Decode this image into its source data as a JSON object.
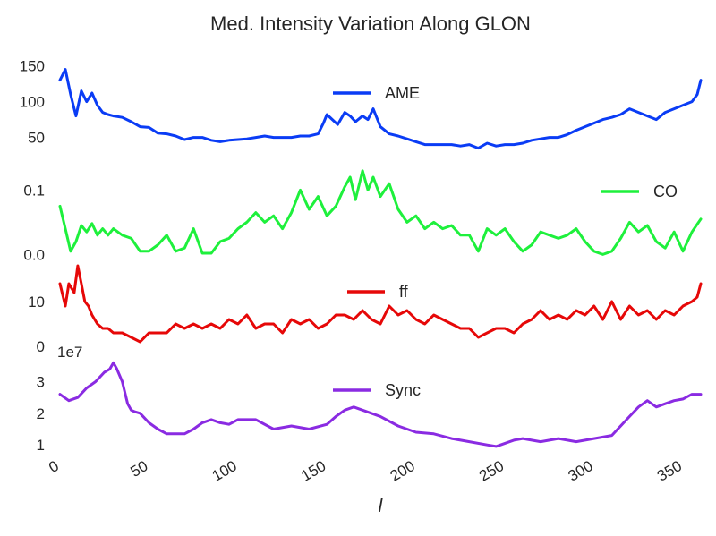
{
  "chart_data": {
    "type": "line",
    "title": "Med. Intensity Variation Along GLON",
    "xlabel": "l",
    "xlim": [
      0,
      360
    ],
    "xticks": [
      0,
      50,
      100,
      150,
      200,
      250,
      300,
      350
    ],
    "grid": false,
    "panels": [
      {
        "name": "AME",
        "color": "#0a3cf5",
        "legend_position": "top-center",
        "ylim": [
          32,
          152
        ],
        "yticks": [
          50,
          100,
          150
        ],
        "x": [
          0,
          3,
          6,
          9,
          12,
          15,
          18,
          21,
          24,
          27,
          30,
          35,
          40,
          45,
          50,
          55,
          60,
          65,
          70,
          75,
          80,
          85,
          90,
          95,
          100,
          105,
          110,
          115,
          120,
          125,
          130,
          135,
          140,
          145,
          148,
          150,
          153,
          156,
          160,
          163,
          166,
          170,
          173,
          176,
          180,
          185,
          190,
          195,
          200,
          205,
          210,
          215,
          220,
          225,
          230,
          235,
          240,
          245,
          250,
          255,
          260,
          265,
          270,
          275,
          280,
          285,
          290,
          295,
          300,
          305,
          310,
          315,
          320,
          325,
          330,
          335,
          340,
          345,
          350,
          355,
          358,
          360
        ],
        "values": [
          130,
          145,
          110,
          80,
          115,
          100,
          112,
          95,
          85,
          82,
          80,
          78,
          72,
          65,
          64,
          56,
          55,
          52,
          47,
          50,
          50,
          46,
          44,
          46,
          47,
          48,
          50,
          52,
          50,
          50,
          50,
          52,
          52,
          55,
          70,
          82,
          75,
          68,
          85,
          80,
          72,
          80,
          75,
          90,
          65,
          55,
          52,
          48,
          44,
          40,
          40,
          40,
          40,
          38,
          40,
          35,
          42,
          38,
          40,
          40,
          42,
          46,
          48,
          50,
          50,
          54,
          60,
          65,
          70,
          75,
          78,
          82,
          90,
          85,
          80,
          75,
          85,
          90,
          95,
          100,
          110,
          130
        ]
      },
      {
        "name": "CO",
        "color": "#1ef03c",
        "legend_position": "center-right",
        "ylim": [
          -0.005,
          0.145
        ],
        "yticks": [
          0.0,
          0.1
        ],
        "ytick_labels": [
          "0.0",
          "0.1"
        ],
        "x": [
          0,
          3,
          6,
          9,
          12,
          15,
          18,
          21,
          24,
          27,
          30,
          35,
          40,
          45,
          50,
          55,
          60,
          65,
          70,
          75,
          80,
          85,
          90,
          95,
          100,
          105,
          110,
          115,
          120,
          125,
          130,
          135,
          140,
          145,
          150,
          155,
          160,
          163,
          166,
          170,
          173,
          176,
          180,
          185,
          190,
          195,
          200,
          205,
          210,
          215,
          220,
          225,
          230,
          235,
          240,
          245,
          250,
          255,
          260,
          265,
          270,
          275,
          280,
          285,
          290,
          295,
          300,
          305,
          310,
          315,
          320,
          325,
          330,
          335,
          340,
          345,
          350,
          355,
          360
        ],
        "values": [
          0.075,
          0.04,
          0.005,
          0.02,
          0.045,
          0.035,
          0.048,
          0.03,
          0.04,
          0.03,
          0.04,
          0.03,
          0.025,
          0.005,
          0.005,
          0.015,
          0.03,
          0.005,
          0.01,
          0.04,
          0.002,
          0.002,
          0.02,
          0.025,
          0.04,
          0.05,
          0.065,
          0.05,
          0.06,
          0.04,
          0.065,
          0.1,
          0.07,
          0.09,
          0.06,
          0.075,
          0.105,
          0.12,
          0.085,
          0.13,
          0.1,
          0.12,
          0.09,
          0.11,
          0.07,
          0.05,
          0.06,
          0.04,
          0.05,
          0.04,
          0.045,
          0.03,
          0.03,
          0.005,
          0.04,
          0.03,
          0.04,
          0.02,
          0.005,
          0.015,
          0.035,
          0.03,
          0.025,
          0.03,
          0.04,
          0.02,
          0.005,
          0.0,
          0.005,
          0.025,
          0.05,
          0.035,
          0.045,
          0.02,
          0.01,
          0.035,
          0.005,
          0.035,
          0.055
        ]
      },
      {
        "name": "ff",
        "color": "#e60808",
        "legend_position": "top-center",
        "ylim": [
          -1,
          19
        ],
        "yticks": [
          0,
          10
        ],
        "x": [
          0,
          3,
          5,
          8,
          10,
          12,
          14,
          16,
          18,
          21,
          24,
          27,
          30,
          35,
          40,
          45,
          50,
          55,
          60,
          65,
          70,
          75,
          80,
          85,
          90,
          95,
          100,
          105,
          110,
          115,
          120,
          125,
          130,
          135,
          140,
          145,
          150,
          155,
          160,
          165,
          170,
          175,
          180,
          185,
          190,
          195,
          200,
          205,
          210,
          215,
          220,
          225,
          230,
          235,
          240,
          245,
          250,
          255,
          260,
          265,
          270,
          275,
          280,
          285,
          290,
          295,
          300,
          305,
          310,
          315,
          320,
          325,
          330,
          335,
          340,
          345,
          350,
          355,
          358,
          360
        ],
        "values": [
          14,
          9,
          14,
          12,
          18,
          14,
          10,
          9,
          7,
          5,
          4,
          4,
          3,
          3,
          2,
          1,
          3,
          3,
          3,
          5,
          4,
          5,
          4,
          5,
          4,
          6,
          5,
          7,
          4,
          5,
          5,
          3,
          6,
          5,
          6,
          4,
          5,
          7,
          7,
          6,
          8,
          6,
          5,
          9,
          7,
          8,
          6,
          5,
          7,
          6,
          5,
          4,
          4,
          2,
          3,
          4,
          4,
          3,
          5,
          6,
          8,
          6,
          7,
          6,
          8,
          7,
          9,
          6,
          10,
          6,
          9,
          7,
          8,
          6,
          8,
          7,
          9,
          10,
          11,
          14
        ]
      },
      {
        "name": "Sync",
        "color": "#8a2be2",
        "legend_position": "top-center",
        "ylim": [
          0.75,
          3.75
        ],
        "yticks": [
          1,
          2,
          3
        ],
        "offset_text": "1e7",
        "x": [
          0,
          5,
          10,
          15,
          20,
          25,
          28,
          30,
          32,
          35,
          38,
          40,
          42,
          45,
          50,
          55,
          60,
          65,
          70,
          75,
          80,
          85,
          90,
          95,
          100,
          110,
          120,
          130,
          140,
          150,
          155,
          160,
          165,
          170,
          180,
          190,
          200,
          210,
          220,
          230,
          240,
          245,
          250,
          255,
          260,
          270,
          280,
          290,
          300,
          310,
          320,
          325,
          330,
          335,
          340,
          345,
          350,
          355,
          360
        ],
        "values": [
          2.6,
          2.4,
          2.5,
          2.8,
          3.0,
          3.3,
          3.4,
          3.6,
          3.4,
          3.0,
          2.3,
          2.1,
          2.05,
          2.0,
          1.7,
          1.5,
          1.35,
          1.35,
          1.35,
          1.5,
          1.7,
          1.8,
          1.7,
          1.65,
          1.8,
          1.8,
          1.5,
          1.6,
          1.5,
          1.65,
          1.9,
          2.1,
          2.2,
          2.1,
          1.9,
          1.6,
          1.4,
          1.35,
          1.2,
          1.1,
          1.0,
          0.95,
          1.05,
          1.15,
          1.2,
          1.1,
          1.2,
          1.1,
          1.2,
          1.3,
          1.9,
          2.2,
          2.4,
          2.2,
          2.3,
          2.4,
          2.45,
          2.6,
          2.6
        ]
      }
    ]
  }
}
